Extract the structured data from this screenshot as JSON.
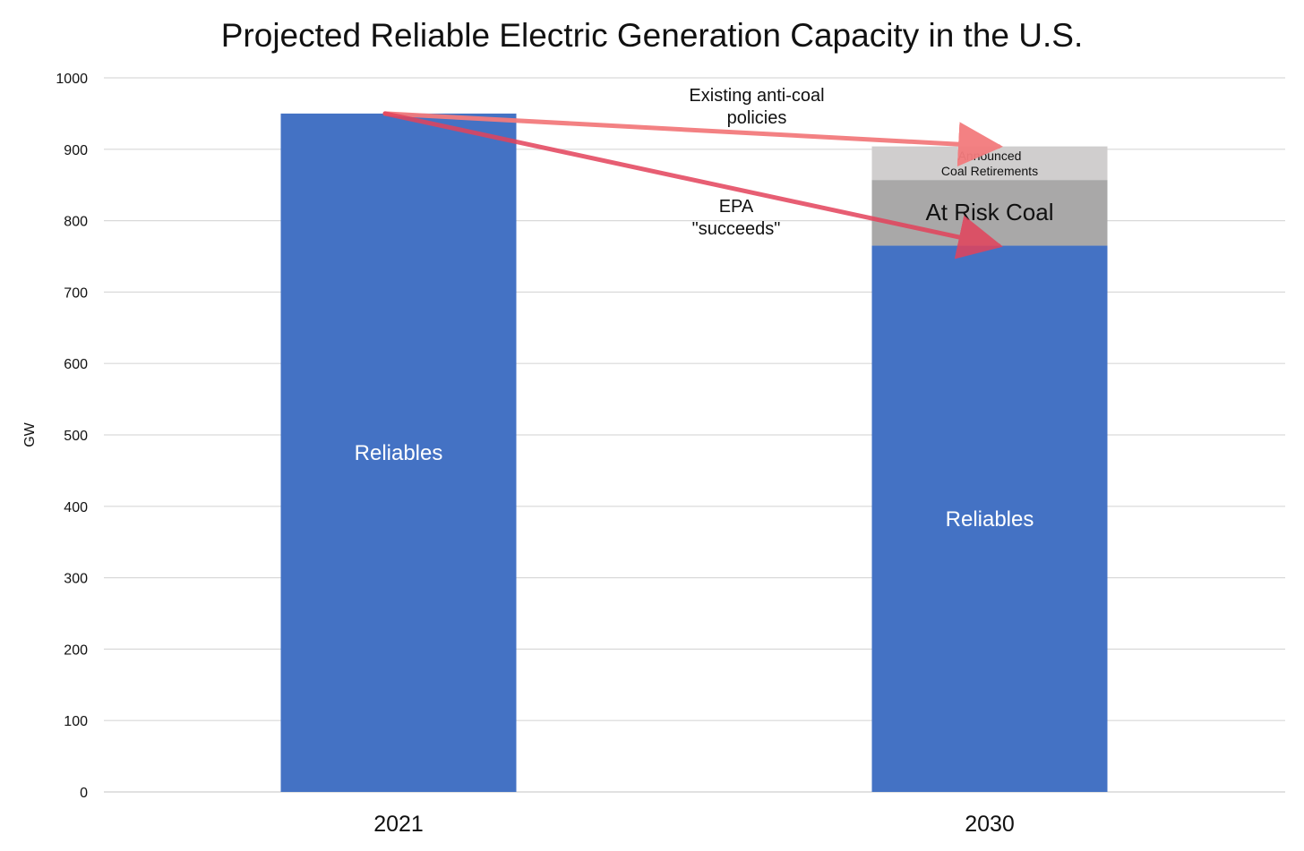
{
  "chart_data": {
    "type": "bar",
    "title": "Projected Reliable Electric Generation Capacity in the U.S.",
    "ylabel": "GW",
    "xlabel": "",
    "categories": [
      "2021",
      "2030"
    ],
    "ylim": [
      0,
      1000
    ],
    "yticks": [
      "0",
      "100",
      "200",
      "300",
      "400",
      "500",
      "600",
      "700",
      "800",
      "900",
      "1000"
    ],
    "grid": true,
    "series": [
      {
        "name": "Reliables",
        "color": "#4472C4",
        "values": [
          950,
          765
        ]
      },
      {
        "name": "At Risk Coal",
        "color": "#A9A8A8",
        "values": [
          0,
          92
        ]
      },
      {
        "name": "Announced Coal Retirements",
        "color": "#D0CECE",
        "values": [
          0,
          47
        ]
      }
    ],
    "bar_labels": [
      {
        "category": "2021",
        "series": "Reliables",
        "lines": [
          "Reliables"
        ]
      },
      {
        "category": "2030",
        "series": "Reliables",
        "lines": [
          "Reliables"
        ]
      },
      {
        "category": "2030",
        "series": "At Risk Coal",
        "lines": [
          "At Risk Coal"
        ]
      },
      {
        "category": "2030",
        "series": "Announced Coal Retirements",
        "lines": [
          "Announced",
          "Coal Retirements"
        ]
      }
    ],
    "annotations": [
      {
        "lines": [
          "Existing anti-coal",
          "policies"
        ]
      },
      {
        "lines": [
          "EPA",
          "\"succeeds\""
        ]
      }
    ],
    "arrows": [
      {
        "from": {
          "x": "2021",
          "y": 950
        },
        "to": {
          "x": "2030",
          "y": 904
        },
        "color": "#F37B7D"
      },
      {
        "from": {
          "x": "2021",
          "y": 950
        },
        "to": {
          "x": "2030",
          "y": 765
        },
        "color": "#E3435B"
      }
    ]
  }
}
